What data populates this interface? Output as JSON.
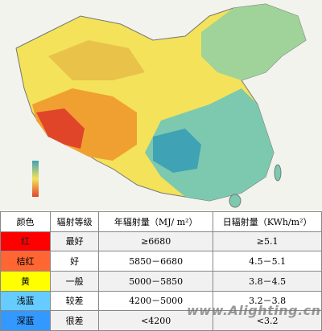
{
  "table": {
    "header": [
      "颜色",
      "辐射等级",
      "年辐射量（MJ/ m²）",
      "日辐射量（KWh/m²）"
    ],
    "rows": [
      [
        "红",
        "最好",
        "≥6680",
        "≥5.1"
      ],
      [
        "桔红",
        "好",
        "5850－6680",
        "4.5－5.1"
      ],
      [
        "黄",
        "一般",
        "5000－5850",
        "3.8－4.5"
      ],
      [
        "浅蓝",
        "较差",
        "4200－5000",
        "3.2－3.8"
      ],
      [
        "深蓝",
        "很差",
        "<4200",
        "<3.2"
      ]
    ]
  },
  "watermark": "www.Alighting.cn"
}
